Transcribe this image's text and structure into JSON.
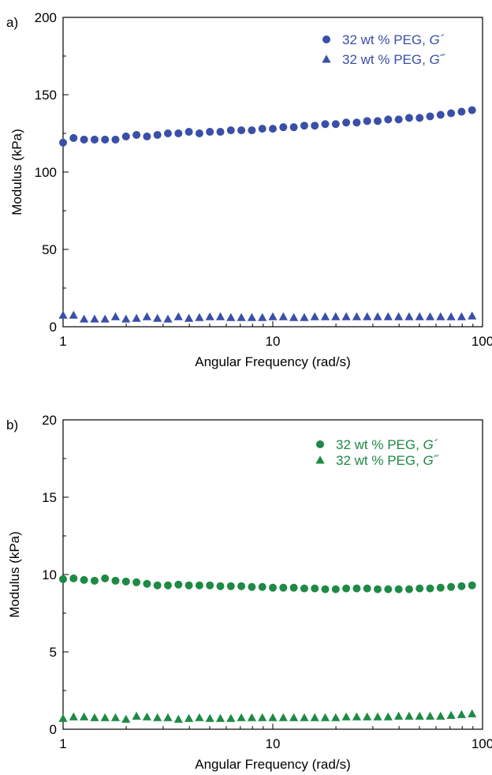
{
  "chart_data": [
    {
      "panel_label": "a)",
      "type": "scatter",
      "xlabel": "Angular Frequency (rad/s)",
      "ylabel": "Modulus (kPa)",
      "xscale": "log",
      "xlim": [
        1,
        100
      ],
      "ylim": [
        0,
        200
      ],
      "xticks": [
        1,
        10,
        100
      ],
      "xtick_labels": [
        "1",
        "10",
        "100"
      ],
      "yticks": [
        0,
        50,
        100,
        150,
        200
      ],
      "ytick_labels": [
        "0",
        "50",
        "100",
        "150",
        "200"
      ],
      "grid": false,
      "legend_position": "top-right",
      "color": "#3a4fa8",
      "x": [
        1,
        1.122,
        1.259,
        1.413,
        1.585,
        1.778,
        1.995,
        2.239,
        2.512,
        2.818,
        3.162,
        3.548,
        3.981,
        4.467,
        5.012,
        5.623,
        6.31,
        7.079,
        7.943,
        8.913,
        10,
        11.22,
        12.59,
        14.13,
        15.85,
        17.78,
        19.95,
        22.39,
        25.12,
        28.18,
        31.62,
        35.48,
        39.81,
        44.67,
        50.12,
        56.23,
        63.1,
        70.79,
        79.43,
        89.13
      ],
      "series": [
        {
          "name": "32 wt % PEG, ",
          "name_italic": "G´",
          "marker": "circle",
          "values": [
            119,
            122,
            121,
            121,
            121,
            121,
            123,
            124,
            123,
            124,
            125,
            125,
            126,
            125,
            126,
            126,
            127,
            127,
            127,
            128,
            128,
            129,
            129,
            130,
            130,
            131,
            131,
            132,
            132,
            133,
            133,
            134,
            134,
            135,
            135,
            136,
            137,
            138,
            139,
            140
          ]
        },
        {
          "name": "32 wt % PEG, ",
          "name_italic": "G˝",
          "marker": "triangle",
          "values": [
            7.5,
            7.5,
            5,
            5,
            5,
            6.5,
            5,
            5.5,
            6.5,
            5.5,
            5,
            6.5,
            5.5,
            6,
            6.5,
            6.5,
            6,
            6,
            6,
            6,
            6.5,
            6.5,
            6,
            6,
            6.5,
            6.5,
            6.5,
            6.5,
            6.5,
            6.5,
            6.5,
            6.5,
            6.5,
            6.5,
            6.5,
            6.5,
            6.5,
            6.5,
            6.5,
            7
          ]
        }
      ]
    },
    {
      "panel_label": "b)",
      "type": "scatter",
      "xlabel": "Angular Frequency (rad/s)",
      "ylabel": "Modulus (kPa)",
      "xscale": "log",
      "xlim": [
        1,
        100
      ],
      "ylim": [
        0,
        20
      ],
      "xticks": [
        1,
        10,
        100
      ],
      "xtick_labels": [
        "1",
        "10",
        "100"
      ],
      "yticks": [
        0,
        5,
        10,
        15,
        20
      ],
      "ytick_labels": [
        "0",
        "5",
        "10",
        "15",
        "20"
      ],
      "grid": false,
      "legend_position": "top-right",
      "color": "#1e8a45",
      "x": [
        1,
        1.122,
        1.259,
        1.413,
        1.585,
        1.778,
        1.995,
        2.239,
        2.512,
        2.818,
        3.162,
        3.548,
        3.981,
        4.467,
        5.012,
        5.623,
        6.31,
        7.079,
        7.943,
        8.913,
        10,
        11.22,
        12.59,
        14.13,
        15.85,
        17.78,
        19.95,
        22.39,
        25.12,
        28.18,
        31.62,
        35.48,
        39.81,
        44.67,
        50.12,
        56.23,
        63.1,
        70.79,
        79.43,
        89.13
      ],
      "series": [
        {
          "name": "32 wt % PEG, ",
          "name_italic": "G´",
          "marker": "circle",
          "values": [
            9.7,
            9.75,
            9.65,
            9.6,
            9.75,
            9.6,
            9.55,
            9.5,
            9.4,
            9.3,
            9.3,
            9.35,
            9.3,
            9.3,
            9.3,
            9.25,
            9.25,
            9.25,
            9.2,
            9.2,
            9.15,
            9.15,
            9.15,
            9.1,
            9.1,
            9.05,
            9.05,
            9.1,
            9.1,
            9.1,
            9.05,
            9.05,
            9.05,
            9.05,
            9.1,
            9.1,
            9.15,
            9.2,
            9.25,
            9.3
          ]
        },
        {
          "name": "32 wt % PEG, ",
          "name_italic": "G˝",
          "marker": "triangle",
          "values": [
            0.7,
            0.8,
            0.8,
            0.75,
            0.75,
            0.75,
            0.65,
            0.85,
            0.8,
            0.75,
            0.75,
            0.65,
            0.7,
            0.75,
            0.7,
            0.7,
            0.7,
            0.75,
            0.75,
            0.75,
            0.75,
            0.75,
            0.75,
            0.75,
            0.75,
            0.75,
            0.75,
            0.8,
            0.8,
            0.8,
            0.8,
            0.8,
            0.85,
            0.85,
            0.85,
            0.85,
            0.85,
            0.9,
            0.95,
            1.0
          ]
        }
      ]
    }
  ]
}
